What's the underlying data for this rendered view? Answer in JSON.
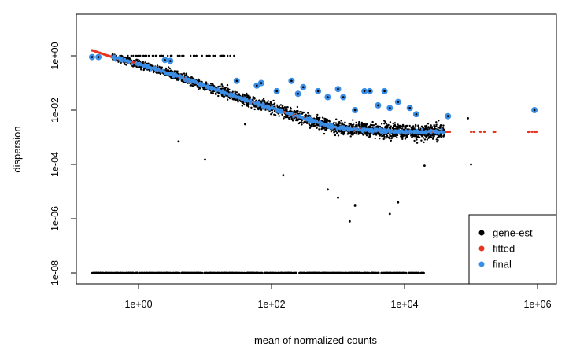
{
  "chart_data": {
    "type": "scatter",
    "title": "",
    "xlabel": "mean of normalized counts",
    "ylabel": "dispersion",
    "x_scale": "log10",
    "y_scale": "log10",
    "xlim": [
      0.1,
      2000000
    ],
    "ylim": [
      6e-09,
      20
    ],
    "x_ticks": [
      {
        "value": 1,
        "label": "1e+00"
      },
      {
        "value": 100,
        "label": "1e+02"
      },
      {
        "value": 10000,
        "label": "1e+04"
      },
      {
        "value": 1000000,
        "label": "1e+06"
      }
    ],
    "y_ticks": [
      {
        "value": 1,
        "label": "1e+00"
      },
      {
        "value": 0.01,
        "label": "1e-02"
      },
      {
        "value": 0.0001,
        "label": "1e-04"
      },
      {
        "value": 1e-06,
        "label": "1e-06"
      },
      {
        "value": 1e-08,
        "label": "1e-08"
      }
    ],
    "grid": false,
    "legend_position": "bottom-right",
    "series": [
      {
        "name": "gene-est",
        "color": "#000000",
        "role": "gene-wise estimates (dense cloud along trend plus a row at the lower bound)"
      },
      {
        "name": "fitted",
        "color": "#e8351f",
        "role": "fitted dispersion trend"
      },
      {
        "name": "final",
        "color": "#3a8ee6",
        "role": "final (shrunken) dispersions"
      }
    ],
    "fitted_trend": {
      "x": [
        0.2,
        0.4,
        1,
        3,
        10,
        30,
        100,
        300,
        1000,
        3000,
        10000,
        20000,
        50000,
        100000,
        1000000
      ],
      "y": [
        1.6,
        0.9,
        0.5,
        0.22,
        0.08,
        0.03,
        0.012,
        0.005,
        0.0022,
        0.0018,
        0.0016,
        0.0016,
        0.0016,
        0.0016,
        0.0016
      ]
    },
    "final_outliers": [
      {
        "x": 0.2,
        "y": 0.9
      },
      {
        "x": 0.25,
        "y": 0.9
      },
      {
        "x": 2.5,
        "y": 0.7
      },
      {
        "x": 3,
        "y": 0.65
      },
      {
        "x": 30,
        "y": 0.12
      },
      {
        "x": 60,
        "y": 0.08
      },
      {
        "x": 70,
        "y": 0.1
      },
      {
        "x": 120,
        "y": 0.05
      },
      {
        "x": 200,
        "y": 0.12
      },
      {
        "x": 250,
        "y": 0.04
      },
      {
        "x": 300,
        "y": 0.07
      },
      {
        "x": 500,
        "y": 0.05
      },
      {
        "x": 700,
        "y": 0.03
      },
      {
        "x": 1000,
        "y": 0.06
      },
      {
        "x": 1200,
        "y": 0.03
      },
      {
        "x": 1800,
        "y": 0.01
      },
      {
        "x": 2500,
        "y": 0.05
      },
      {
        "x": 3000,
        "y": 0.05
      },
      {
        "x": 4000,
        "y": 0.015
      },
      {
        "x": 5000,
        "y": 0.05
      },
      {
        "x": 6000,
        "y": 0.012
      },
      {
        "x": 8000,
        "y": 0.02
      },
      {
        "x": 12000,
        "y": 0.012
      },
      {
        "x": 15000,
        "y": 0.007
      },
      {
        "x": 45000,
        "y": 0.006
      },
      {
        "x": 900000,
        "y": 0.01
      }
    ],
    "gene_est_notes": {
      "cloud_x_range": [
        0.4,
        40000
      ],
      "lower_bound_row_y": 1e-08,
      "lower_bound_row_x_range": [
        0.2,
        20000
      ],
      "scattered_low_points": [
        {
          "x": 4,
          "y": 0.0007
        },
        {
          "x": 10,
          "y": 0.00015
        },
        {
          "x": 40,
          "y": 0.003
        },
        {
          "x": 150,
          "y": 4e-05
        },
        {
          "x": 700,
          "y": 1.2e-05
        },
        {
          "x": 1000,
          "y": 6e-06
        },
        {
          "x": 1500,
          "y": 8e-07
        },
        {
          "x": 1800,
          "y": 3e-06
        },
        {
          "x": 6000,
          "y": 1.5e-06
        },
        {
          "x": 8000,
          "y": 4e-06
        },
        {
          "x": 20000,
          "y": 9e-05
        },
        {
          "x": 100000,
          "y": 0.0001
        },
        {
          "x": 90000,
          "y": 0.005
        }
      ]
    }
  }
}
